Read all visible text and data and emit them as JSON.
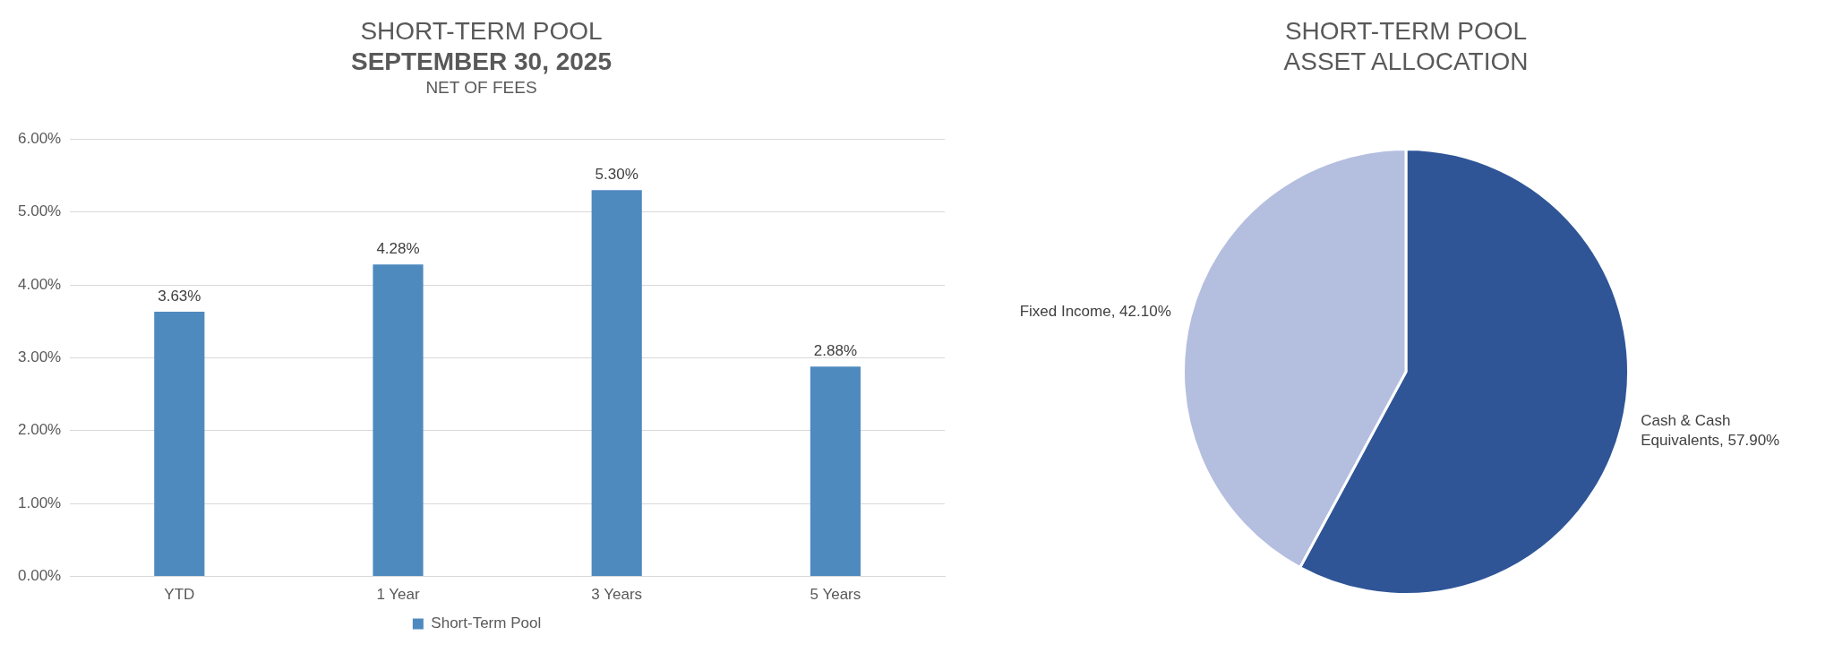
{
  "chart_data": [
    {
      "type": "bar",
      "title": "SHORT-TERM POOL",
      "subtitle": "SEPTEMBER 30, 2025",
      "annotations": [
        "NET OF FEES"
      ],
      "categories": [
        "YTD",
        "1 Year",
        "3 Years",
        "5 Years"
      ],
      "series": [
        {
          "name": "Short-Term Pool",
          "color": "#4f8abe",
          "values": [
            3.63,
            4.28,
            5.3,
            2.88
          ],
          "value_labels": [
            "3.63%",
            "4.28%",
            "5.30%",
            "2.88%"
          ]
        }
      ],
      "ylim": [
        0,
        6
      ],
      "yticks": [
        {
          "value": 0,
          "label": "0.00%"
        },
        {
          "value": 1,
          "label": "1.00%"
        },
        {
          "value": 2,
          "label": "2.00%"
        },
        {
          "value": 3,
          "label": "3.00%"
        },
        {
          "value": 4,
          "label": "4.00%"
        },
        {
          "value": 5,
          "label": "5.00%"
        },
        {
          "value": 6,
          "label": "6.00%"
        }
      ],
      "grid": "y",
      "legend": "bottom"
    },
    {
      "type": "pie",
      "title": "SHORT-TERM POOL",
      "subtitle": "ASSET ALLOCATION",
      "categories": [
        "Cash & Cash Equivalents",
        "Fixed Income"
      ],
      "values": [
        57.9,
        42.1
      ],
      "value_labels": [
        "57.90%",
        "42.10%"
      ],
      "colors": [
        "#2f5597",
        "#b4bedf"
      ]
    }
  ]
}
